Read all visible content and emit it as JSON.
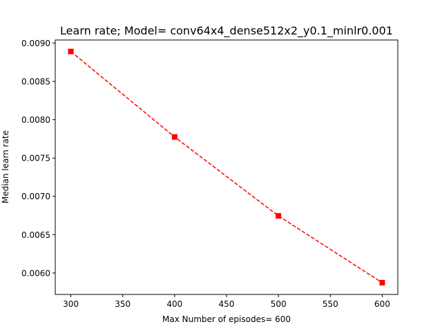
{
  "chart_data": {
    "type": "line",
    "title": "Learn rate; Model= conv64x4_dense512x2_y0.1_minlr0.001",
    "xlabel": "Max Number of episodes= 600",
    "ylabel": "Median learn rate",
    "x": [
      300,
      400,
      500,
      600
    ],
    "series": [
      {
        "values": [
          0.00889,
          0.007775,
          0.006745,
          0.005873
        ]
      }
    ],
    "xlim": [
      285,
      615
    ],
    "ylim": [
      0.00572,
      0.00904
    ],
    "xticks": [
      300,
      350,
      400,
      450,
      500,
      550,
      600
    ],
    "xtick_labels": [
      "300",
      "350",
      "400",
      "450",
      "500",
      "550",
      "600"
    ],
    "yticks": [
      0.006,
      0.0065,
      0.007,
      0.0075,
      0.008,
      0.0085,
      0.009
    ],
    "ytick_labels": [
      "0.0060",
      "0.0065",
      "0.0070",
      "0.0075",
      "0.0080",
      "0.0085",
      "0.0090"
    ],
    "line_style": "dashed",
    "marker": "square",
    "color": "#ff0000",
    "grid": false,
    "legend": "none"
  }
}
